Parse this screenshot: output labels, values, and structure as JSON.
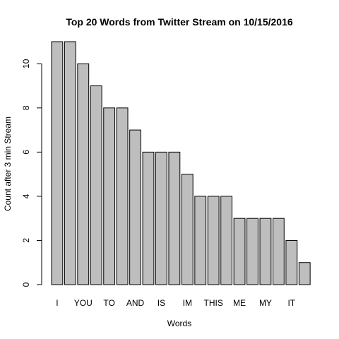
{
  "chart_data": {
    "type": "bar",
    "title": "Top 20 Words from Twitter Stream on 10/15/2016",
    "xlabel": "Words",
    "ylabel": "Count after 3 min Stream",
    "categories": [
      "I",
      "",
      "YOU",
      "",
      "TO",
      "",
      "AND",
      "",
      "IS",
      "",
      "IM",
      "",
      "THIS",
      "",
      "ME",
      "",
      "MY",
      "",
      "IT",
      ""
    ],
    "values": [
      11,
      11,
      10,
      9,
      8,
      8,
      7,
      6,
      6,
      6,
      5,
      4,
      4,
      4,
      3,
      3,
      3,
      3,
      2,
      1
    ],
    "ylim": [
      0,
      11
    ],
    "yticks": [
      0,
      2,
      4,
      6,
      8,
      10
    ],
    "bar_color": "#bebebe",
    "grid": false
  }
}
